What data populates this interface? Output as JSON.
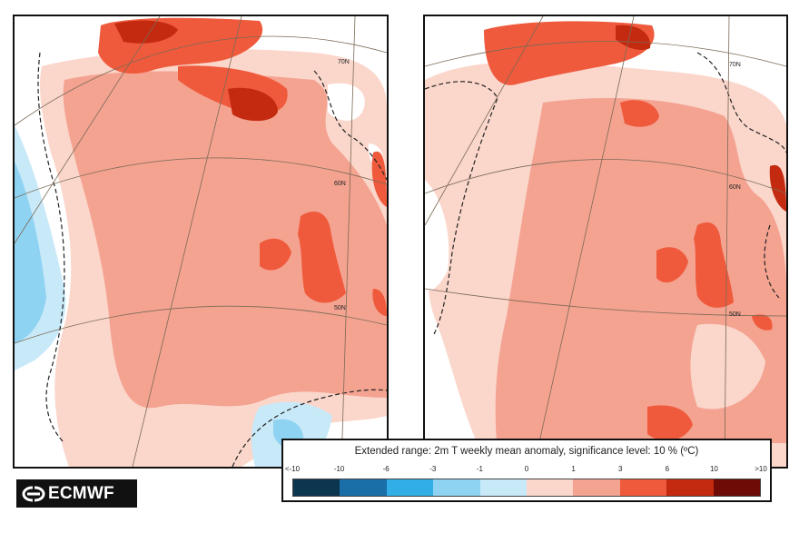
{
  "legend": {
    "title": "Extended range: 2m T weekly mean anomaly, significance level: 10 % (ºC)",
    "ticks": [
      "<-10",
      "-10",
      "-6",
      "-3",
      "-1",
      "0",
      "1",
      "3",
      "6",
      "10",
      ">10"
    ],
    "colors": [
      "#0c3550",
      "#1a6fa8",
      "#31aee6",
      "#8fd3f2",
      "#c8e9f8",
      "#fbd6cb",
      "#f4a391",
      "#ef5a3c",
      "#c42a10",
      "#6e0b06"
    ]
  },
  "maps": [
    {
      "name": "week-anomaly-map-left",
      "lat_labels": [
        "70N",
        "60N",
        "50N"
      ]
    },
    {
      "name": "week-anomaly-map-right",
      "lat_labels": [
        "70N",
        "60N",
        "50N"
      ]
    }
  ],
  "logo": {
    "text": "ECMWF"
  }
}
